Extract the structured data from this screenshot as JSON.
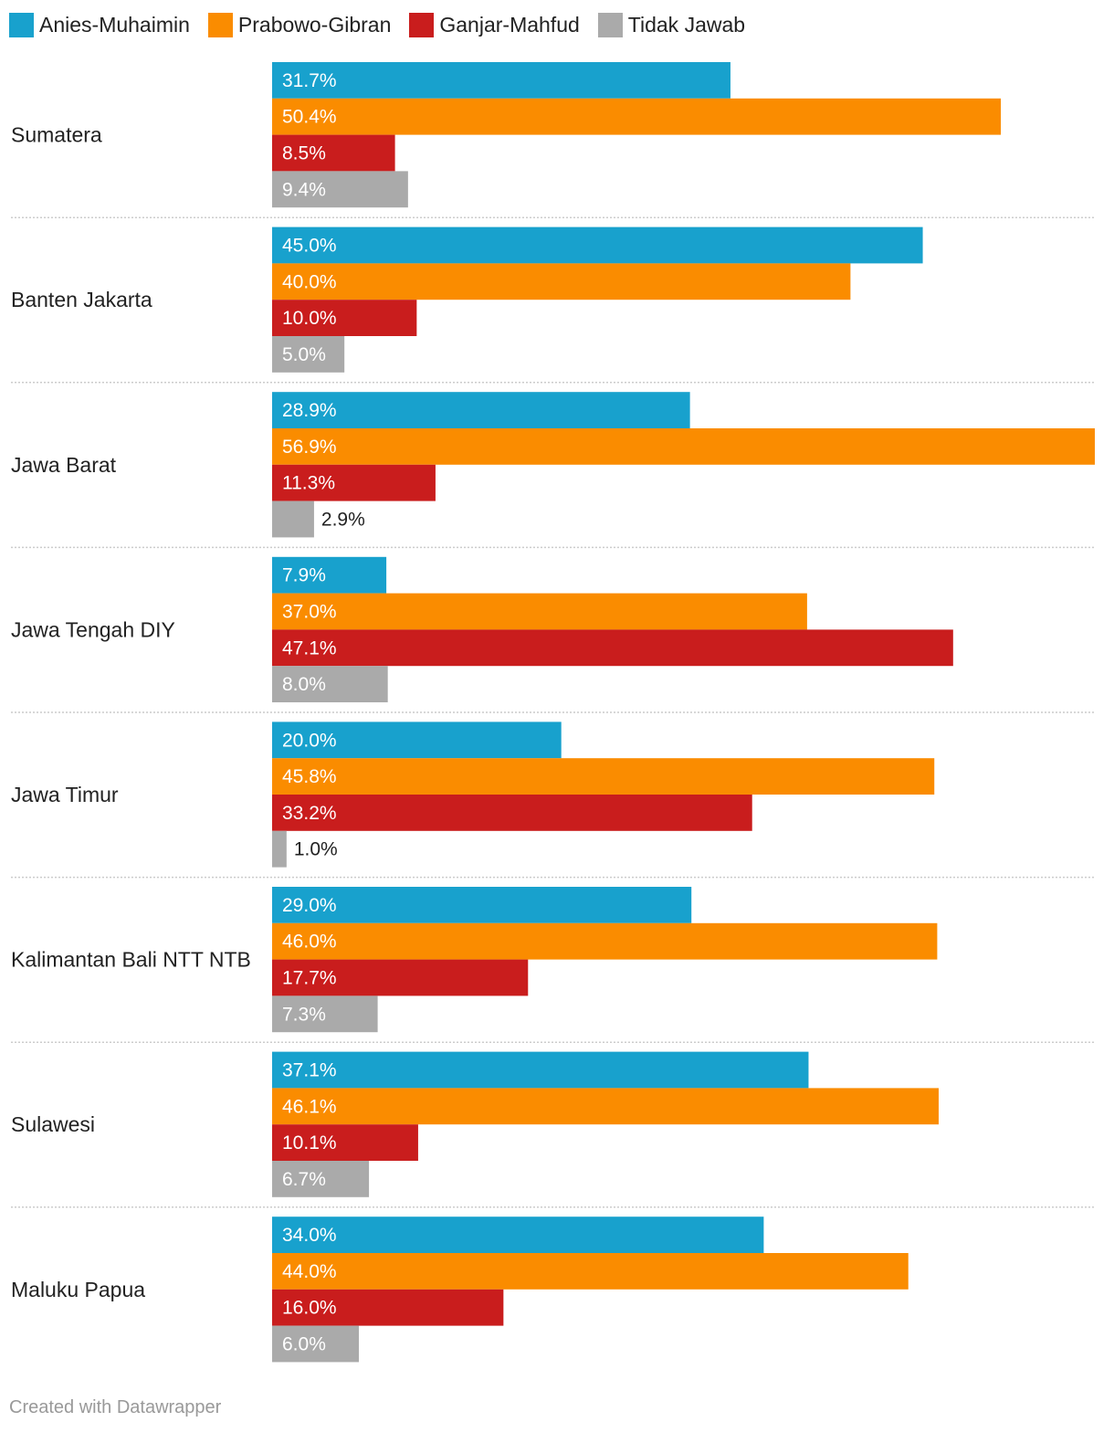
{
  "chart_data": {
    "type": "bar",
    "orientation": "horizontal",
    "categories": [
      "Sumatera",
      "Banten Jakarta",
      "Jawa Barat",
      "Jawa Tengah DIY",
      "Jawa Timur",
      "Kalimantan Bali NTT NTB",
      "Sulawesi",
      "Maluku Papua"
    ],
    "series": [
      {
        "name": "Anies-Muhaimin",
        "color": "#18a1cd",
        "values": [
          31.7,
          45.0,
          28.9,
          7.9,
          20.0,
          29.0,
          37.1,
          34.0
        ]
      },
      {
        "name": "Prabowo-Gibran",
        "color": "#fa8c00",
        "values": [
          50.4,
          40.0,
          56.9,
          37.0,
          45.8,
          46.0,
          46.1,
          44.0
        ]
      },
      {
        "name": "Ganjar-Mahfud",
        "color": "#c91d1d",
        "values": [
          8.5,
          10.0,
          11.3,
          47.1,
          33.2,
          17.7,
          10.1,
          16.0
        ]
      },
      {
        "name": "Tidak Jawab",
        "color": "#aaaaaa",
        "values": [
          9.4,
          5.0,
          2.9,
          8.0,
          1.0,
          7.3,
          6.7,
          6.0
        ]
      }
    ],
    "value_suffix": "%",
    "xlim": [
      0,
      56.9
    ],
    "grid": false,
    "legend_position": "top-left"
  },
  "footer": "Created with Datawrapper"
}
